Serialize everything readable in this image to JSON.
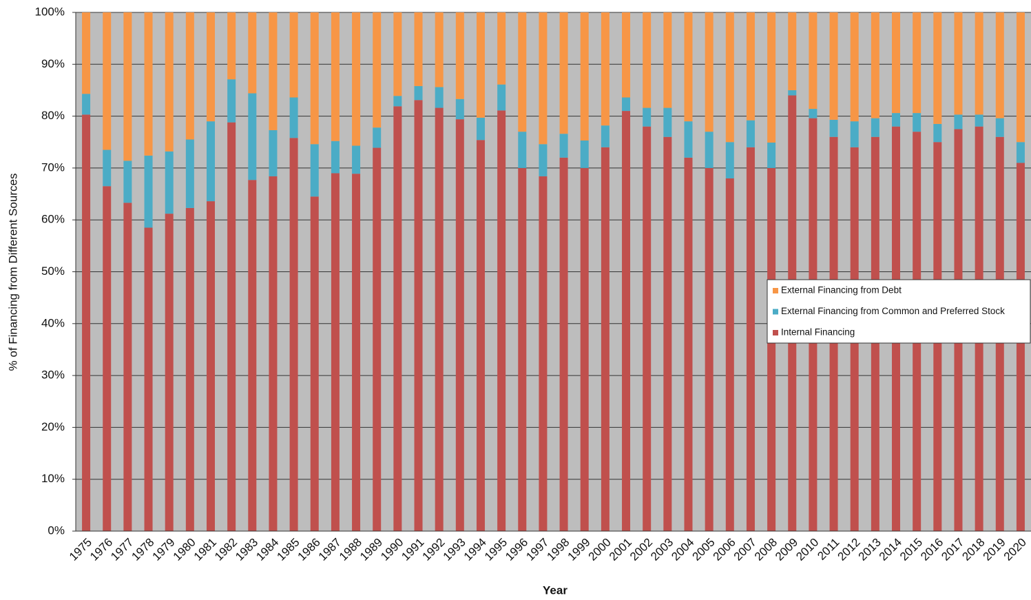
{
  "chart_data": {
    "type": "stacked_bar",
    "x_label": "Year",
    "y_label": "% of Financing from Different Sources",
    "categories": [
      "1975",
      "1976",
      "1977",
      "1978",
      "1979",
      "1980",
      "1981",
      "1982",
      "1983",
      "1984",
      "1985",
      "1986",
      "1987",
      "1988",
      "1989",
      "1990",
      "1991",
      "1992",
      "1993",
      "1994",
      "1995",
      "1996",
      "1997",
      "1998",
      "1999",
      "2000",
      "2001",
      "2002",
      "2003",
      "2004",
      "2005",
      "2006",
      "2007",
      "2008",
      "2009",
      "2010",
      "2011",
      "2012",
      "2013",
      "2014",
      "2015",
      "2016",
      "2017",
      "2018",
      "2019",
      "2020"
    ],
    "series": [
      {
        "name": "Internal Financing",
        "color": "#c0504d",
        "values": [
          80.3,
          66.5,
          63.3,
          58.5,
          61.2,
          62.3,
          63.6,
          78.8,
          67.7,
          68.4,
          75.8,
          64.5,
          69,
          68.9,
          73.9,
          81.9,
          83.1,
          81.6,
          79.4,
          75.4,
          81.1,
          70,
          68.4,
          72,
          70,
          74,
          81,
          78,
          76,
          72,
          70,
          68,
          74,
          70,
          84,
          79.6,
          76,
          74,
          76,
          78,
          77,
          75,
          77.5,
          78,
          76,
          71
        ]
      },
      {
        "name": "External Financing from Common and Preferred Stock",
        "color": "#4bacc6",
        "values": [
          4,
          7,
          8.1,
          13.9,
          12,
          13.2,
          15.4,
          8.3,
          16.7,
          8.9,
          7.8,
          10.1,
          6.2,
          5.4,
          3.9,
          2,
          2.7,
          4,
          3.9,
          4.3,
          5,
          7,
          6.2,
          4.6,
          5.3,
          4.2,
          2.6,
          3.6,
          5.6,
          7,
          7,
          7,
          5.2,
          4.9,
          1,
          1.8,
          3.3,
          5,
          3.6,
          2.6,
          3.6,
          3.5,
          2.8,
          2.3,
          3.6,
          4
        ]
      },
      {
        "name": "External Financing from Debt",
        "color": "#f79646",
        "values": [
          15.7,
          26.5,
          28.6,
          27.6,
          26.8,
          24.5,
          21,
          12.9,
          15.6,
          22.7,
          16.4,
          25.4,
          24.8,
          25.7,
          22.2,
          16.1,
          14.2,
          14.4,
          16.7,
          20.3,
          13.9,
          23,
          25.4,
          23.4,
          24.7,
          21.8,
          16.4,
          18.4,
          18.4,
          21,
          23,
          25,
          20.8,
          25.1,
          15,
          18.6,
          20.7,
          21,
          20.4,
          19.4,
          19.4,
          21.5,
          19.7,
          19.7,
          20.4,
          25
        ]
      }
    ],
    "ylim": [
      0,
      100
    ],
    "yticks": [
      {
        "value": 0,
        "label": "0%"
      },
      {
        "value": 10,
        "label": "10%"
      },
      {
        "value": 20,
        "label": "20%"
      },
      {
        "value": 30,
        "label": "30%"
      },
      {
        "value": 40,
        "label": "40%"
      },
      {
        "value": 50,
        "label": "50%"
      },
      {
        "value": 60,
        "label": "60%"
      },
      {
        "value": 70,
        "label": "70%"
      },
      {
        "value": 80,
        "label": "80%"
      },
      {
        "value": 90,
        "label": "90%"
      },
      {
        "value": 100,
        "label": "100%"
      }
    ],
    "grid": true,
    "plot_background": "#bdbdbd",
    "legend": "right"
  }
}
